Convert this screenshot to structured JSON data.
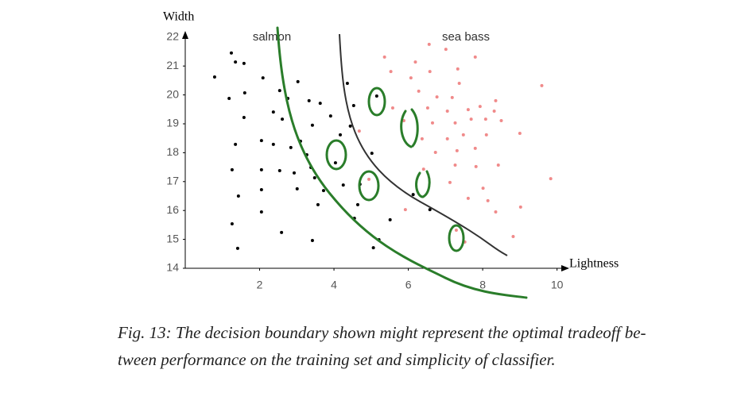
{
  "chart_data": {
    "type": "scatter",
    "x_label": "Lightness",
    "y_label": "Width",
    "xlim": [
      0,
      10.2
    ],
    "ylim": [
      14,
      22.2
    ],
    "xticks": [
      2,
      4,
      6,
      8,
      10
    ],
    "yticks": [
      14,
      15,
      16,
      17,
      18,
      19,
      20,
      21,
      22
    ],
    "series": [
      {
        "name": "salmon",
        "color": "#000000",
        "x": [
          1.24,
          1.35,
          1.58,
          0.79,
          2.09,
          1.18,
          1.6,
          2.54,
          3.03,
          2.76,
          2.37,
          3.33,
          3.63,
          1.58,
          2.61,
          1.35,
          2.05,
          2.37,
          2.84,
          3.42,
          3.1,
          3.27,
          3.91,
          4.36,
          4.53,
          4.17,
          4.44,
          1.26,
          2.05,
          2.54,
          2.93,
          3.38,
          4.04,
          3.48,
          3.01,
          2.05,
          1.43,
          3.72,
          4.25,
          4.7,
          5.02,
          3.57,
          4.64,
          2.05,
          2.59,
          3.42,
          4.55,
          5.21,
          5.06,
          5.51,
          1.41,
          1.26,
          5.15,
          6.13,
          6.58
        ],
        "values": [
          21.45,
          21.14,
          21.09,
          20.62,
          20.59,
          19.88,
          20.07,
          20.15,
          20.46,
          19.88,
          19.41,
          19.8,
          19.71,
          19.22,
          19.16,
          18.29,
          18.42,
          18.29,
          18.18,
          18.95,
          18.4,
          17.93,
          19.27,
          20.4,
          19.63,
          18.62,
          18.92,
          17.41,
          17.41,
          17.38,
          17.3,
          17.49,
          17.65,
          17.13,
          16.75,
          16.72,
          16.5,
          16.69,
          16.88,
          16.91,
          17.98,
          16.2,
          16.2,
          15.95,
          15.24,
          14.96,
          15.73,
          14.99,
          14.71,
          15.68,
          14.69,
          15.54,
          19.96,
          16.55,
          16.03
        ]
      },
      {
        "name": "sea bass",
        "color": "#f08a8a",
        "x": [
          5.36,
          6.56,
          7.01,
          7.8,
          6.19,
          5.53,
          6.58,
          7.33,
          6.07,
          7.37,
          9.59,
          6.28,
          6.77,
          7.18,
          8.35,
          5.58,
          6.52,
          7.05,
          7.61,
          7.93,
          8.31,
          5.88,
          6.65,
          7.26,
          7.69,
          8.08,
          8.5,
          4.68,
          6.37,
          7.05,
          7.48,
          8.1,
          9.0,
          6.73,
          7.31,
          7.8,
          7.26,
          7.82,
          8.42,
          6.41,
          7.12,
          8.01,
          9.83,
          7.61,
          8.14,
          9.02,
          8.35,
          5.92,
          7.29,
          8.82,
          7.52,
          4.94
        ],
        "values": [
          21.31,
          21.75,
          21.58,
          21.31,
          21.14,
          20.81,
          20.81,
          20.9,
          20.59,
          20.4,
          20.32,
          20.13,
          19.93,
          19.91,
          19.8,
          19.55,
          19.55,
          19.44,
          19.49,
          19.6,
          19.44,
          19.11,
          19.03,
          19.03,
          19.16,
          19.16,
          19.11,
          18.75,
          18.48,
          18.48,
          18.62,
          18.62,
          18.67,
          18.01,
          18.07,
          18.15,
          17.57,
          17.52,
          17.57,
          17.43,
          16.97,
          16.77,
          17.1,
          16.42,
          16.34,
          16.12,
          15.95,
          16.03,
          15.32,
          15.1,
          14.91,
          17.08
        ]
      }
    ],
    "caption": "Fig. 13: The decision boundary shown might represent the optimal tradeoff be- tween performance on the training set and simplicity of classifier."
  }
}
